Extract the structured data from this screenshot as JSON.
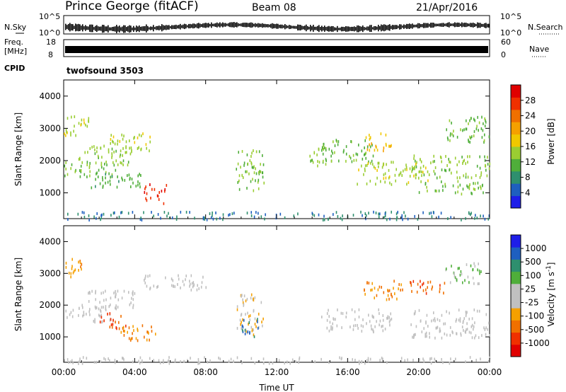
{
  "header": {
    "title": "Prince George (fitACF)",
    "beam": "Beam 08",
    "date": "21/Apr/2016"
  },
  "strips": {
    "nsky_label": "N.Sky",
    "nsearch_label": "N.Search",
    "noise_left_ticks": [
      "10^5",
      "10^0"
    ],
    "noise_right_ticks": [
      "10^5",
      "10^0"
    ],
    "freq_label_1": "Freq.",
    "freq_label_2": "[MHz]",
    "freq_ticks": [
      "18",
      "8"
    ],
    "nave_label": "Nave",
    "nave_ticks": [
      "60",
      "0"
    ],
    "cpid_label": "CPID",
    "cpid_value": "twofsound 3503"
  },
  "colors": {
    "power_scale": [
      "#1e1ee8",
      "#1e5fbf",
      "#2e8f6e",
      "#4fae3a",
      "#9acd32",
      "#f0c800",
      "#f5a000",
      "#f07000",
      "#f03000",
      "#e00000"
    ],
    "velocity_scale": [
      "#1e1ee8",
      "#1e5fbf",
      "#2e8f6e",
      "#4fae3a",
      "#c0c0c0",
      "#c0c0c0",
      "#f5a000",
      "#f07000",
      "#f03000",
      "#e00000"
    ]
  },
  "chart_data": [
    {
      "type": "heatmap",
      "title": "Power",
      "xlabel": "",
      "ylabel": "Slant Range [km]",
      "x_ticks": [
        "00:00",
        "04:00",
        "08:00",
        "12:00",
        "16:00",
        "20:00",
        "00:00"
      ],
      "y_ticks": [
        "1000",
        "2000",
        "3000",
        "4000"
      ],
      "ylim": [
        200,
        4500
      ],
      "colorbar_label": "Power [dB]",
      "colorbar_ticks": [
        "4",
        "8",
        "12",
        "16",
        "20",
        "24",
        "28"
      ],
      "clim": [
        0,
        30
      ],
      "patches": [
        {
          "t": [
            0.0,
            1.4
          ],
          "r": [
            2800,
            3500
          ],
          "v": 14
        },
        {
          "t": [
            0.0,
            3.0
          ],
          "r": [
            1500,
            2000
          ],
          "v": 12
        },
        {
          "t": [
            0.8,
            3.8
          ],
          "r": [
            1900,
            2500
          ],
          "v": 13
        },
        {
          "t": [
            1.5,
            4.5
          ],
          "r": [
            1200,
            1700
          ],
          "v": 10
        },
        {
          "t": [
            2.5,
            5.0
          ],
          "r": [
            2300,
            2900
          ],
          "v": 14
        },
        {
          "t": [
            4.5,
            5.8
          ],
          "r": [
            700,
            1300
          ],
          "v": 26
        },
        {
          "t": [
            9.7,
            11.3
          ],
          "r": [
            1100,
            2400
          ],
          "v": 12
        },
        {
          "t": [
            13.8,
            14.8
          ],
          "r": [
            1700,
            2500
          ],
          "v": 13
        },
        {
          "t": [
            14.5,
            17.5
          ],
          "r": [
            2000,
            2700
          ],
          "v": 11
        },
        {
          "t": [
            16.5,
            20.5
          ],
          "r": [
            1300,
            2000
          ],
          "v": 14
        },
        {
          "t": [
            17.0,
            18.5
          ],
          "r": [
            2300,
            2900
          ],
          "v": 18
        },
        {
          "t": [
            19.5,
            24.0
          ],
          "r": [
            1500,
            2200
          ],
          "v": 13
        },
        {
          "t": [
            21.5,
            24.0
          ],
          "r": [
            2600,
            3400
          ],
          "v": 11
        },
        {
          "t": [
            20.0,
            24.0
          ],
          "r": [
            1000,
            1400
          ],
          "v": 12
        },
        {
          "t": [
            0.0,
            24.0
          ],
          "r": [
            200,
            450
          ],
          "v": 6
        }
      ]
    },
    {
      "type": "heatmap",
      "title": "Velocity",
      "xlabel": "Time UT",
      "ylabel": "Slant Range [km]",
      "x_ticks": [
        "00:00",
        "04:00",
        "08:00",
        "12:00",
        "16:00",
        "20:00",
        "00:00"
      ],
      "y_ticks": [
        "1000",
        "2000",
        "3000",
        "4000"
      ],
      "ylim": [
        200,
        4500
      ],
      "colorbar_label": "Velocity [m s^-1]",
      "colorbar_ticks": [
        "1000",
        "500",
        "100",
        "25",
        "-25",
        "-100",
        "-500",
        "-1000"
      ],
      "clim": [
        -1000,
        1000
      ],
      "patches": [
        {
          "t": [
            0.0,
            1.0
          ],
          "r": [
            2800,
            3500
          ],
          "v": -300
        },
        {
          "t": [
            0.0,
            3.0
          ],
          "r": [
            1500,
            2000
          ],
          "v": 0
        },
        {
          "t": [
            1.0,
            4.0
          ],
          "r": [
            1900,
            2500
          ],
          "v": 0
        },
        {
          "t": [
            2.0,
            3.5
          ],
          "r": [
            1300,
            1800
          ],
          "v": -600
        },
        {
          "t": [
            3.0,
            5.2
          ],
          "r": [
            900,
            1400
          ],
          "v": -400
        },
        {
          "t": [
            4.5,
            8.0
          ],
          "r": [
            2500,
            3000
          ],
          "v": 0
        },
        {
          "t": [
            9.7,
            11.3
          ],
          "r": [
            1100,
            2400
          ],
          "v": -200
        },
        {
          "t": [
            10.0,
            11.0
          ],
          "r": [
            1000,
            1600
          ],
          "v": 600
        },
        {
          "t": [
            14.5,
            18.5
          ],
          "r": [
            1200,
            1900
          ],
          "v": 0
        },
        {
          "t": [
            16.8,
            19.0
          ],
          "r": [
            2200,
            2800
          ],
          "v": -400
        },
        {
          "t": [
            19.0,
            21.5
          ],
          "r": [
            2400,
            2800
          ],
          "v": -600
        },
        {
          "t": [
            19.5,
            24.0
          ],
          "r": [
            1000,
            1900
          ],
          "v": 0
        },
        {
          "t": [
            21.5,
            23.5
          ],
          "r": [
            2700,
            3400
          ],
          "v": 200
        },
        {
          "t": [
            0.0,
            24.0
          ],
          "r": [
            200,
            400
          ],
          "v": 0
        }
      ]
    }
  ]
}
